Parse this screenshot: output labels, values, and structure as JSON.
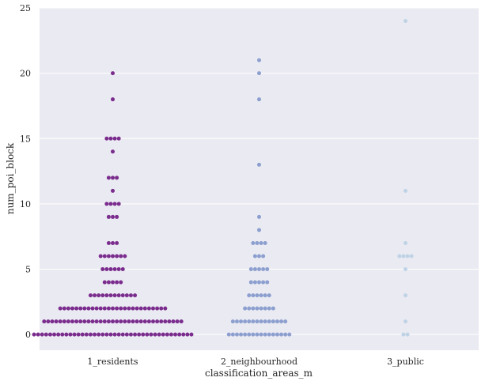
{
  "chart_data": {
    "type": "swarm",
    "xlabel": "classification_areas_m",
    "ylabel": "num_poi_block",
    "ylim": [
      -1.2,
      25
    ],
    "yticks": [
      0,
      5,
      10,
      15,
      20,
      25
    ],
    "grid": true,
    "categories": [
      "1_residents",
      "2_neighbourhood",
      "3_public"
    ],
    "colors": [
      "#7b2d8e",
      "#8c9fcf",
      "#bfd3e6"
    ],
    "background": "#eaeaf2",
    "counts": [
      {
        "0": 40,
        "1": 35,
        "2": 27,
        "3": 12,
        "4": 5,
        "5": 6,
        "6": 7,
        "7": 3,
        "9": 3,
        "10": 4,
        "11": 1,
        "12": 3,
        "14": 1,
        "15": 4,
        "18": 1,
        "20": 1
      },
      {
        "0": 16,
        "1": 14,
        "2": 8,
        "3": 6,
        "4": 5,
        "5": 5,
        "6": 3,
        "7": 4,
        "8": 1,
        "9": 1,
        "13": 1,
        "18": 1,
        "20": 1,
        "21": 1
      },
      {
        "0": 2,
        "1": 1,
        "3": 1,
        "5": 1,
        "6": 4,
        "7": 1,
        "11": 1,
        "24": 1
      }
    ]
  }
}
